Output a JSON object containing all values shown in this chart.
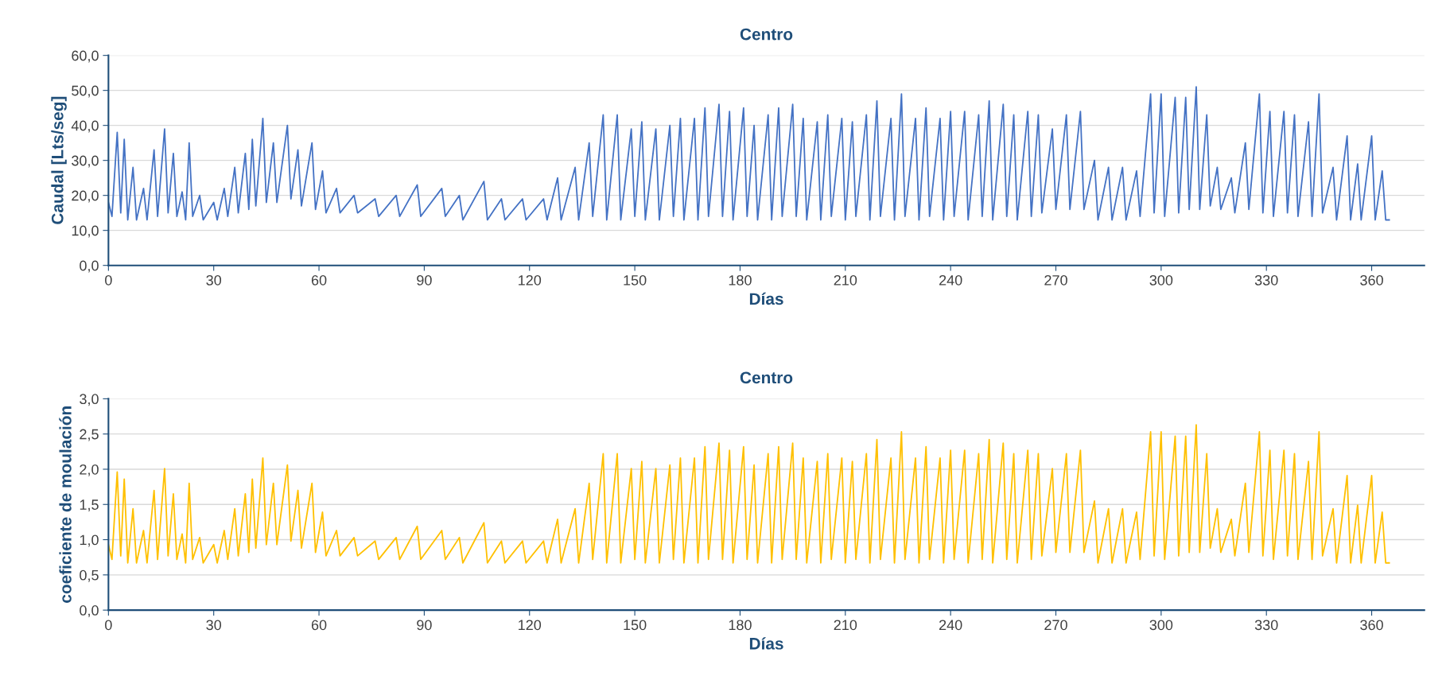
{
  "chart_data": [
    {
      "type": "line",
      "title": "Centro",
      "xlabel": "Días",
      "ylabel": "Caudal [Lts/seg]",
      "grid": "y",
      "marker": "none",
      "line_style": "solid",
      "xlim": [
        0,
        375
      ],
      "xticks": [
        0,
        30,
        60,
        90,
        120,
        150,
        180,
        210,
        240,
        270,
        300,
        330,
        360
      ],
      "ylim": [
        0,
        60
      ],
      "yticks": [
        {
          "value": 0,
          "label": "0,0"
        },
        {
          "value": 10,
          "label": "10,0"
        },
        {
          "value": 20,
          "label": "20,0"
        },
        {
          "value": 30,
          "label": "30,0"
        },
        {
          "value": 40,
          "label": "40,0"
        },
        {
          "value": 50,
          "label": "50,0"
        },
        {
          "value": 60,
          "label": "60,0"
        }
      ],
      "x": [
        0,
        1,
        2.5,
        3.5,
        4.5,
        5.5,
        7,
        8,
        10,
        11,
        13,
        14,
        16,
        17,
        18.5,
        19.5,
        21,
        22,
        23,
        24,
        26,
        27,
        30,
        31,
        33,
        34,
        36,
        37,
        39,
        40,
        41,
        42,
        44,
        45,
        47,
        48,
        51,
        52,
        54,
        55,
        58,
        59,
        61,
        62,
        65,
        66,
        70,
        71,
        76,
        77,
        82,
        83,
        88,
        89,
        95,
        96,
        100,
        101,
        107,
        108,
        112,
        113,
        118,
        119,
        124,
        125,
        128,
        129,
        133,
        134,
        137,
        138,
        141,
        142,
        145,
        146,
        149,
        150,
        152,
        153,
        156,
        157,
        160,
        161,
        163,
        164,
        167,
        168,
        170,
        171,
        174,
        175,
        177,
        178,
        181,
        182,
        184,
        185,
        188,
        189,
        191,
        192,
        195,
        196,
        198,
        199,
        202,
        203,
        205,
        206,
        209,
        210,
        212,
        213,
        216,
        217,
        219,
        220,
        223,
        224,
        226,
        227,
        230,
        231,
        233,
        234,
        237,
        238,
        240,
        241,
        244,
        245,
        248,
        249,
        251,
        252,
        255,
        256,
        258,
        259,
        262,
        263,
        265,
        266,
        269,
        270,
        273,
        274,
        277,
        278,
        281,
        282,
        285,
        286,
        289,
        290,
        293,
        294,
        297,
        298,
        300,
        301,
        304,
        305,
        307,
        308,
        310,
        311,
        313,
        314,
        316,
        317,
        320,
        321,
        324,
        325,
        328,
        329,
        331,
        332,
        335,
        336,
        338,
        339,
        342,
        343,
        345,
        346,
        349,
        350,
        353,
        354,
        356,
        357,
        360,
        361,
        363,
        364,
        365
      ],
      "series": [
        {
          "color": "#4472c4",
          "values": [
            18,
            14,
            38,
            15,
            36,
            13,
            28,
            13,
            22,
            13,
            33,
            14,
            39,
            15,
            32,
            14,
            21,
            13,
            35,
            14,
            20,
            13,
            18,
            13,
            22,
            14,
            28,
            15,
            32,
            16,
            36,
            17,
            42,
            18,
            35,
            18,
            40,
            19,
            33,
            17,
            35,
            16,
            27,
            15,
            22,
            15,
            20,
            15,
            19,
            14,
            20,
            14,
            23,
            14,
            22,
            14,
            20,
            13,
            24,
            13,
            19,
            13,
            19,
            13,
            19,
            13,
            25,
            13,
            28,
            13,
            35,
            14,
            43,
            13,
            43,
            13,
            39,
            14,
            41,
            13,
            39,
            13,
            40,
            14,
            42,
            13,
            42,
            13,
            45,
            14,
            46,
            14,
            44,
            13,
            45,
            14,
            40,
            13,
            43,
            13,
            45,
            14,
            46,
            14,
            42,
            13,
            41,
            13,
            43,
            14,
            42,
            13,
            41,
            14,
            43,
            13,
            47,
            14,
            42,
            13,
            49,
            14,
            42,
            13,
            45,
            14,
            42,
            13,
            44,
            14,
            44,
            13,
            43,
            14,
            47,
            13,
            46,
            14,
            43,
            13,
            44,
            14,
            43,
            15,
            39,
            16,
            43,
            16,
            44,
            16,
            30,
            13,
            28,
            13,
            28,
            13,
            27,
            14,
            49,
            15,
            49,
            14,
            48,
            15,
            48,
            16,
            51,
            16,
            43,
            17,
            28,
            16,
            25,
            15,
            35,
            16,
            49,
            15,
            44,
            14,
            44,
            15,
            43,
            14,
            41,
            14,
            49,
            15,
            28,
            13,
            37,
            13,
            29,
            13,
            37,
            13,
            27,
            13,
            13
          ]
        }
      ]
    },
    {
      "type": "line",
      "title": "Centro",
      "xlabel": "Días",
      "ylabel": "coeficiente de moulación",
      "grid": "y",
      "marker": "none",
      "line_style": "solid",
      "xlim": [
        0,
        375
      ],
      "xticks": [
        0,
        30,
        60,
        90,
        120,
        150,
        180,
        210,
        240,
        270,
        300,
        330,
        360
      ],
      "ylim": [
        0,
        3
      ],
      "yticks": [
        {
          "value": 0,
          "label": "0,0"
        },
        {
          "value": 0.5,
          "label": "0,5"
        },
        {
          "value": 1,
          "label": "1,0"
        },
        {
          "value": 1.5,
          "label": "1,5"
        },
        {
          "value": 2,
          "label": "2,0"
        },
        {
          "value": 2.5,
          "label": "2,5"
        },
        {
          "value": 3,
          "label": "3,0"
        }
      ],
      "x": [
        0,
        1,
        2.5,
        3.5,
        4.5,
        5.5,
        7,
        8,
        10,
        11,
        13,
        14,
        16,
        17,
        18.5,
        19.5,
        21,
        22,
        23,
        24,
        26,
        27,
        30,
        31,
        33,
        34,
        36,
        37,
        39,
        40,
        41,
        42,
        44,
        45,
        47,
        48,
        51,
        52,
        54,
        55,
        58,
        59,
        61,
        62,
        65,
        66,
        70,
        71,
        76,
        77,
        82,
        83,
        88,
        89,
        95,
        96,
        100,
        101,
        107,
        108,
        112,
        113,
        118,
        119,
        124,
        125,
        128,
        129,
        133,
        134,
        137,
        138,
        141,
        142,
        145,
        146,
        149,
        150,
        152,
        153,
        156,
        157,
        160,
        161,
        163,
        164,
        167,
        168,
        170,
        171,
        174,
        175,
        177,
        178,
        181,
        182,
        184,
        185,
        188,
        189,
        191,
        192,
        195,
        196,
        198,
        199,
        202,
        203,
        205,
        206,
        209,
        210,
        212,
        213,
        216,
        217,
        219,
        220,
        223,
        224,
        226,
        227,
        230,
        231,
        233,
        234,
        237,
        238,
        240,
        241,
        244,
        245,
        248,
        249,
        251,
        252,
        255,
        256,
        258,
        259,
        262,
        263,
        265,
        266,
        269,
        270,
        273,
        274,
        277,
        278,
        281,
        282,
        285,
        286,
        289,
        290,
        293,
        294,
        297,
        298,
        300,
        301,
        304,
        305,
        307,
        308,
        310,
        311,
        313,
        314,
        316,
        317,
        320,
        321,
        324,
        325,
        328,
        329,
        331,
        332,
        335,
        336,
        338,
        339,
        342,
        343,
        345,
        346,
        349,
        350,
        353,
        354,
        356,
        357,
        360,
        361,
        363,
        364,
        365
      ],
      "series": [
        {
          "color": "#ffc000",
          "values": [
            0.93,
            0.72,
            1.96,
            0.77,
            1.86,
            0.67,
            1.44,
            0.67,
            1.13,
            0.67,
            1.7,
            0.72,
            2.01,
            0.77,
            1.65,
            0.72,
            1.08,
            0.67,
            1.8,
            0.72,
            1.03,
            0.67,
            0.93,
            0.67,
            1.13,
            0.72,
            1.44,
            0.77,
            1.65,
            0.82,
            1.86,
            0.88,
            2.16,
            0.93,
            1.8,
            0.93,
            2.06,
            0.98,
            1.7,
            0.88,
            1.8,
            0.82,
            1.39,
            0.77,
            1.13,
            0.77,
            1.03,
            0.77,
            0.98,
            0.72,
            1.03,
            0.72,
            1.19,
            0.72,
            1.13,
            0.72,
            1.03,
            0.67,
            1.24,
            0.67,
            0.98,
            0.67,
            0.98,
            0.67,
            0.98,
            0.67,
            1.29,
            0.67,
            1.44,
            0.67,
            1.8,
            0.72,
            2.22,
            0.67,
            2.22,
            0.67,
            2.01,
            0.72,
            2.11,
            0.67,
            2.01,
            0.67,
            2.06,
            0.72,
            2.16,
            0.67,
            2.16,
            0.67,
            2.32,
            0.72,
            2.37,
            0.72,
            2.27,
            0.67,
            2.32,
            0.72,
            2.06,
            0.67,
            2.22,
            0.67,
            2.32,
            0.72,
            2.37,
            0.72,
            2.16,
            0.67,
            2.11,
            0.67,
            2.22,
            0.72,
            2.16,
            0.67,
            2.11,
            0.72,
            2.22,
            0.67,
            2.42,
            0.72,
            2.16,
            0.67,
            2.53,
            0.72,
            2.16,
            0.67,
            2.32,
            0.72,
            2.16,
            0.67,
            2.27,
            0.72,
            2.27,
            0.67,
            2.22,
            0.72,
            2.42,
            0.67,
            2.37,
            0.72,
            2.22,
            0.67,
            2.27,
            0.72,
            2.22,
            0.77,
            2.01,
            0.82,
            2.22,
            0.82,
            2.27,
            0.82,
            1.55,
            0.67,
            1.44,
            0.67,
            1.44,
            0.67,
            1.39,
            0.72,
            2.53,
            0.77,
            2.53,
            0.72,
            2.47,
            0.77,
            2.47,
            0.82,
            2.63,
            0.82,
            2.22,
            0.88,
            1.44,
            0.82,
            1.29,
            0.77,
            1.8,
            0.82,
            2.53,
            0.77,
            2.27,
            0.72,
            2.27,
            0.77,
            2.22,
            0.72,
            2.11,
            0.72,
            2.53,
            0.77,
            1.44,
            0.67,
            1.91,
            0.67,
            1.49,
            0.67,
            1.91,
            0.67,
            1.39,
            0.67,
            0.67
          ]
        }
      ]
    }
  ]
}
